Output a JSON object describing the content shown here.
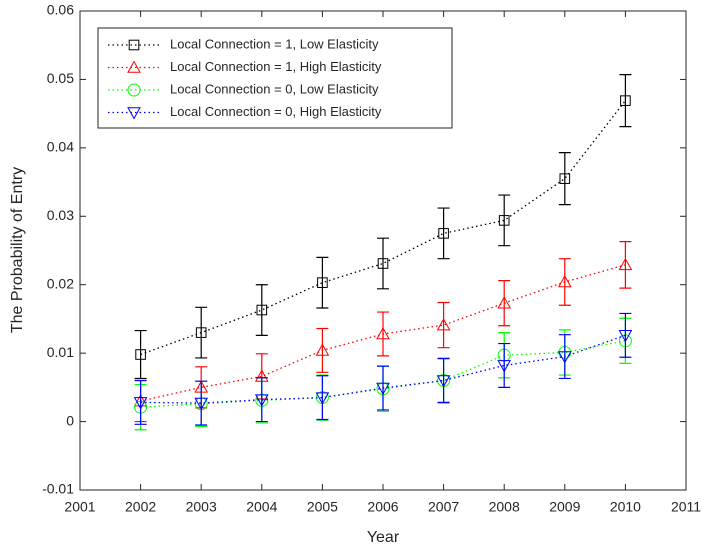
{
  "chart_data": {
    "type": "line",
    "x_label": "Year",
    "y_label": "The Probability of Entry",
    "x": [
      2002,
      2003,
      2004,
      2005,
      2006,
      2007,
      2008,
      2009,
      2010
    ],
    "xlim": [
      2001,
      2011
    ],
    "xticks": [
      2001,
      2002,
      2003,
      2004,
      2005,
      2006,
      2007,
      2008,
      2009,
      2010,
      2011
    ],
    "ylim": [
      -0.01,
      0.06
    ],
    "yticks": [
      -0.01,
      0,
      0.01,
      0.02,
      0.03,
      0.04,
      0.05,
      0.06
    ],
    "grid": false,
    "legend_position": "upper-left",
    "line_style": "dotted",
    "series": [
      {
        "name": "Local Connection = 1, Low Elasticity",
        "color": "#000000",
        "marker": "square",
        "values": [
          0.0098,
          0.013,
          0.0163,
          0.0203,
          0.0231,
          0.0275,
          0.0294,
          0.0355,
          0.0469
        ],
        "errors": [
          0.0035,
          0.0037,
          0.0037,
          0.0037,
          0.0037,
          0.0037,
          0.0037,
          0.0038,
          0.0038
        ]
      },
      {
        "name": "Local Connection = 1, High Elasticity",
        "color": "#ff0000",
        "marker": "triangle-up",
        "values": [
          0.003,
          0.005,
          0.0066,
          0.0104,
          0.0128,
          0.0141,
          0.0173,
          0.0204,
          0.0229
        ],
        "errors": [
          0.003,
          0.003,
          0.0033,
          0.0032,
          0.0032,
          0.0033,
          0.0033,
          0.0034,
          0.0034
        ]
      },
      {
        "name": "Local Connection = 0, Low Elasticity",
        "color": "#00ff00",
        "marker": "circle",
        "values": [
          0.0021,
          0.0026,
          0.0031,
          0.0035,
          0.0048,
          0.006,
          0.0097,
          0.0101,
          0.0118
        ],
        "errors": [
          0.0033,
          0.0033,
          0.0033,
          0.0033,
          0.0033,
          0.0033,
          0.0033,
          0.0033,
          0.0033
        ]
      },
      {
        "name": "Local Connection = 0, High Elasticity",
        "color": "#0000ff",
        "marker": "triangle-down",
        "values": [
          0.0028,
          0.0027,
          0.0032,
          0.0035,
          0.0049,
          0.006,
          0.0082,
          0.0095,
          0.0126
        ],
        "errors": [
          0.0032,
          0.0032,
          0.0032,
          0.0032,
          0.0032,
          0.0032,
          0.0032,
          0.0032,
          0.0032
        ]
      }
    ]
  }
}
